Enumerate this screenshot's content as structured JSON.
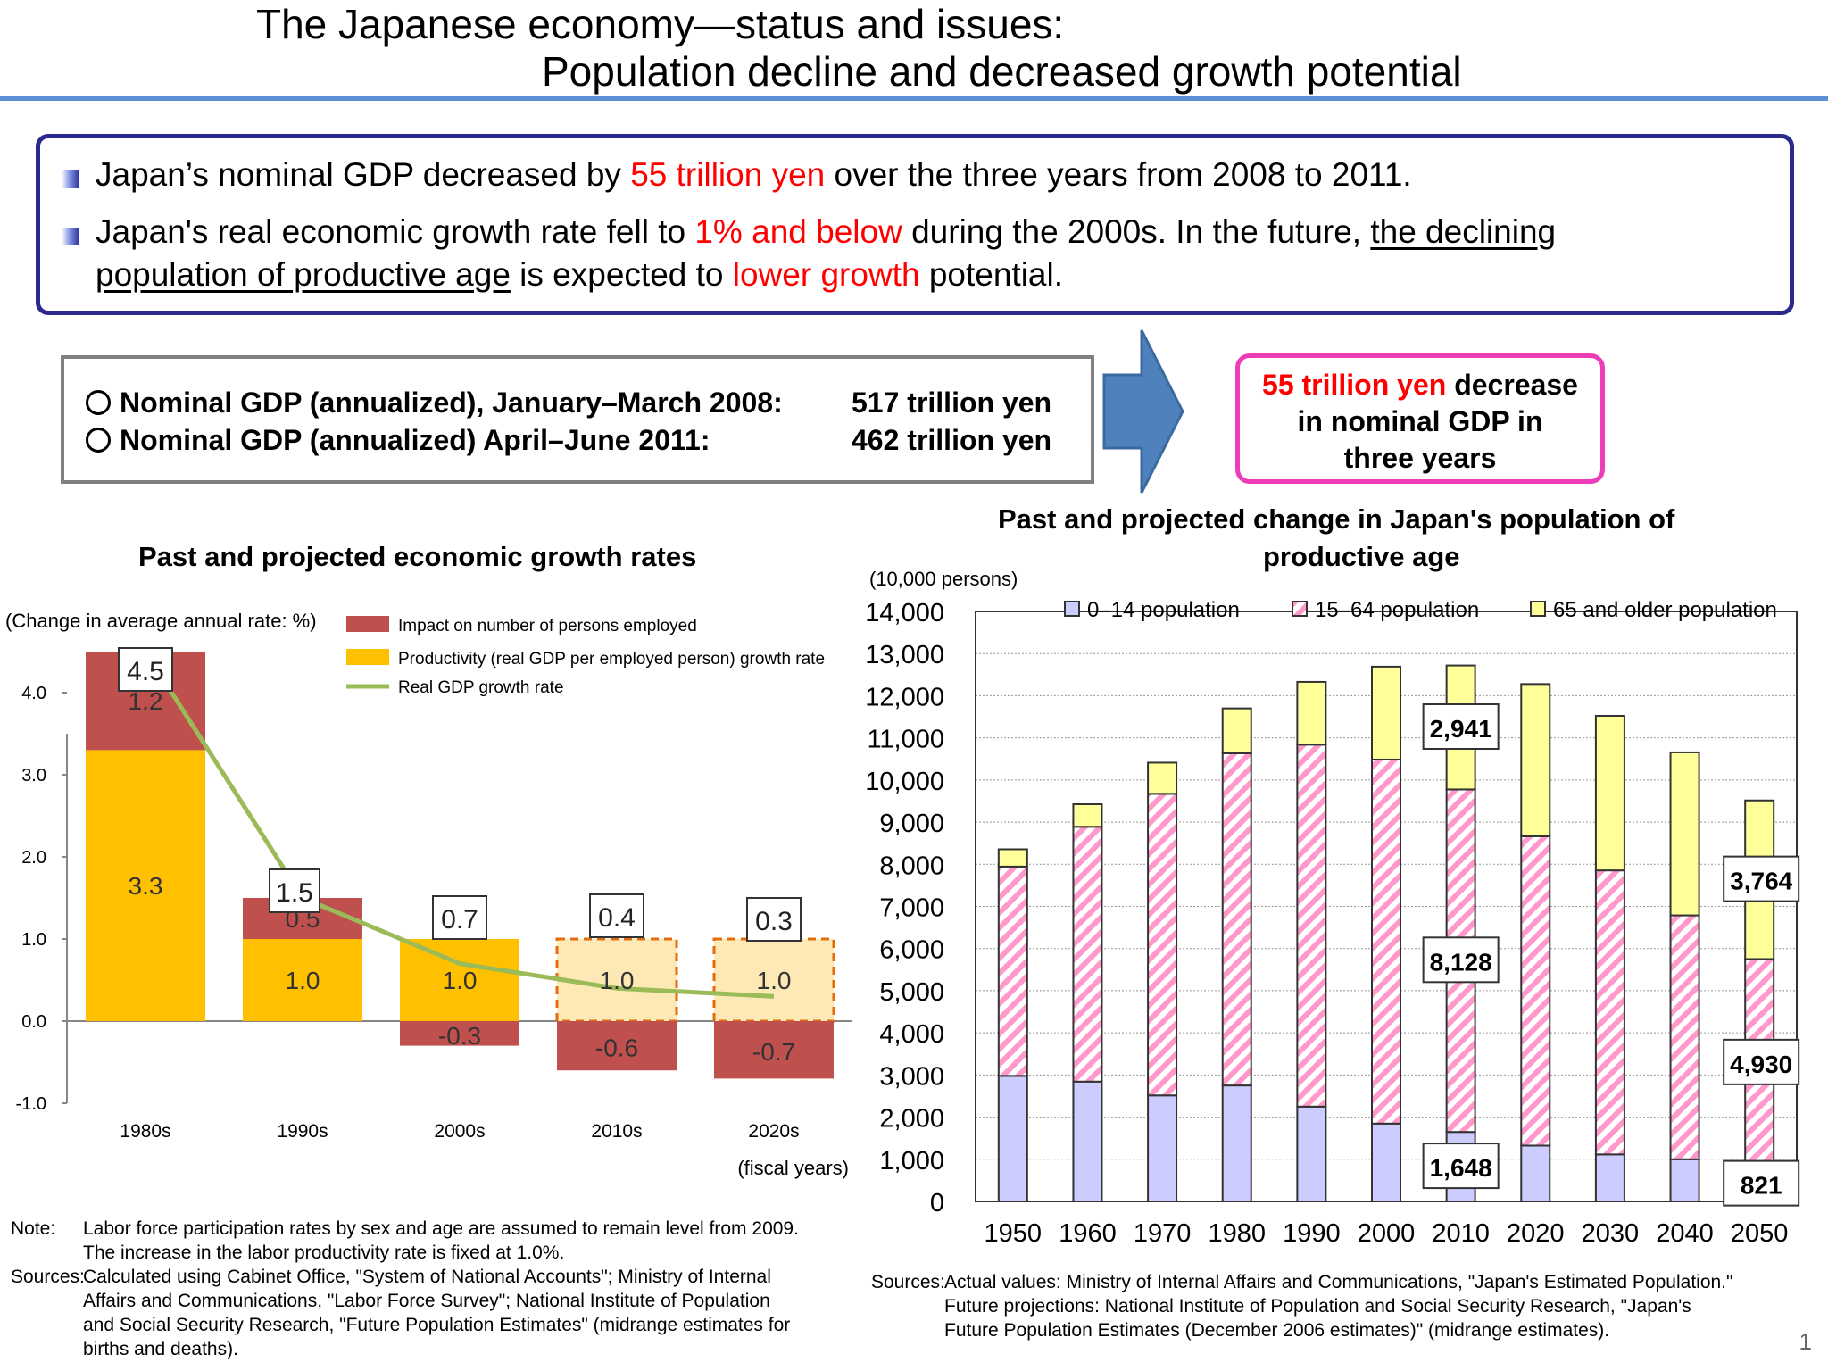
{
  "header": {
    "title_line1": "The Japanese economy—status and issues:",
    "title_line2": "Population decline and decreased growth potential"
  },
  "summary": {
    "bullet1": {
      "pre": "Japan’s nominal GDP decreased by ",
      "red": "55 trillion yen",
      "post": " over the three years from 2008 to 2011."
    },
    "bullet2": {
      "pre": "Japan's real economic growth rate fell to ",
      "red1": "1% and below",
      "mid": " during the 2000s. In the future, ",
      "ul1": "the declining",
      "ul2": "population of productive age",
      "mid2": " is expected to ",
      "red2": "lower growth",
      "post": " potential."
    }
  },
  "gdp_box": {
    "row1_label": "Nominal GDP (annualized), January–March 2008:",
    "row1_value": "517 trillion yen",
    "row2_label": "Nominal GDP (annualized) April–June 2011:",
    "row2_value": "462 trillion yen"
  },
  "decrease_box": {
    "red": "55 trillion yen",
    "line1_rest": " decrease",
    "line2": "in nominal GDP in",
    "line3": "three years"
  },
  "colors": {
    "employed": "#c0504d",
    "productivity": "#ffc000",
    "productivity_projected": "#fde9b5",
    "projected_border": "#e46c0a",
    "real_gdp_line": "#9bbb59",
    "pop_0_14": "#ccccff",
    "pop_15_64_stripe": "#ff99cc",
    "pop_65_plus": "#ffff99",
    "title_rule": "#5b8fd6",
    "summary_border": "#2a2a8c",
    "decrease_border": "#ee3bb8"
  },
  "chart_data": [
    {
      "type": "bar",
      "title": "Past and projected economic growth rates",
      "ylabel": "(Change in average annual rate: %)",
      "xlabel": "(fiscal years)",
      "categories": [
        "1980s",
        "1990s",
        "2000s",
        "2010s",
        "2020s"
      ],
      "yticks": [
        "-1.0",
        "0.0",
        "1.0",
        "2.0",
        "3.0",
        "4.0"
      ],
      "ylim": [
        -1.0,
        4.0
      ],
      "projected_from_index": 3,
      "series": [
        {
          "name": "Impact on number of persons employed",
          "values": [
            1.2,
            0.5,
            -0.3,
            -0.6,
            -0.7
          ],
          "labels": [
            "1.2",
            "0.5",
            "-0.3",
            "-0.6",
            "-0.7"
          ]
        },
        {
          "name": "Productivity (real GDP per employed person) growth rate",
          "values": [
            3.3,
            1.0,
            1.0,
            1.0,
            1.0
          ],
          "labels": [
            "3.3",
            "1.0",
            "1.0",
            "1.0",
            "1.0"
          ]
        },
        {
          "name": "Real GDP growth rate",
          "type": "line",
          "values": [
            4.5,
            1.5,
            0.7,
            0.4,
            0.3
          ],
          "labels": [
            "4.5",
            "1.5",
            "0.7",
            "0.4",
            "0.3"
          ]
        }
      ],
      "legend": "top-right",
      "grid": false
    },
    {
      "type": "bar",
      "stacked": true,
      "title": "Past and projected change in Japan's population of productive age",
      "ylabel": "(10,000 persons)",
      "categories": [
        "1950",
        "1960",
        "1970",
        "1980",
        "1990",
        "2000",
        "2010",
        "2020",
        "2030",
        "2040",
        "2050"
      ],
      "yticks": [
        "0",
        "1,000",
        "2,000",
        "3,000",
        "4,000",
        "5,000",
        "6,000",
        "7,000",
        "8,000",
        "9,000",
        "10,000",
        "11,000",
        "12,000",
        "13,000",
        "14,000"
      ],
      "ylim": [
        0,
        14000
      ],
      "series": [
        {
          "name": "0–14 population",
          "values": [
            2979,
            2843,
            2515,
            2751,
            2249,
            1847,
            1648,
            1324,
            1115,
            1000,
            821
          ]
        },
        {
          "name": "15–64 population",
          "values": [
            4966,
            6047,
            7157,
            7883,
            8590,
            8638,
            8128,
            7341,
            6740,
            5787,
            4930
          ]
        },
        {
          "name": "65 and older population",
          "values": [
            411,
            535,
            739,
            1065,
            1489,
            2204,
            2941,
            3612,
            3667,
            3868,
            3764
          ]
        }
      ],
      "callouts": [
        {
          "category": "2010",
          "series": "65 and older population",
          "text": "2,941"
        },
        {
          "category": "2010",
          "series": "15–64 population",
          "text": "8,128"
        },
        {
          "category": "2010",
          "series": "0–14 population",
          "text": "1,648"
        },
        {
          "category": "2050",
          "series": "65 and older population",
          "text": "3,764"
        },
        {
          "category": "2050",
          "series": "15–64 population",
          "text": "4,930"
        },
        {
          "category": "2050",
          "series": "0–14 population",
          "text": "821"
        }
      ],
      "legend": "top",
      "grid": true
    }
  ],
  "notes_left": {
    "note_label": "Note:",
    "note_line1": "Labor force participation rates by sex and age are assumed to remain level from 2009.",
    "note_line2": "The increase in the labor productivity rate is fixed at 1.0%.",
    "sources_label": "Sources:",
    "sources_line1": "Calculated using Cabinet Office, \"System of National Accounts\"; Ministry of Internal",
    "sources_line2": "Affairs and Communications, \"Labor Force Survey\"; National Institute of Population",
    "sources_line3": "and Social Security Research, \"Future Population Estimates\" (midrange estimates for",
    "sources_line4": "births and deaths)."
  },
  "notes_right": {
    "sources_label": "Sources:",
    "line1": "Actual values: Ministry of Internal Affairs and Communications, \"Japan's Estimated Population.\"",
    "line2": "Future projections: National Institute of Population and Social Security Research, \"Japan's",
    "line3": "Future Population Estimates (December 2006 estimates)\" (midrange estimates)."
  },
  "page_number": "1"
}
